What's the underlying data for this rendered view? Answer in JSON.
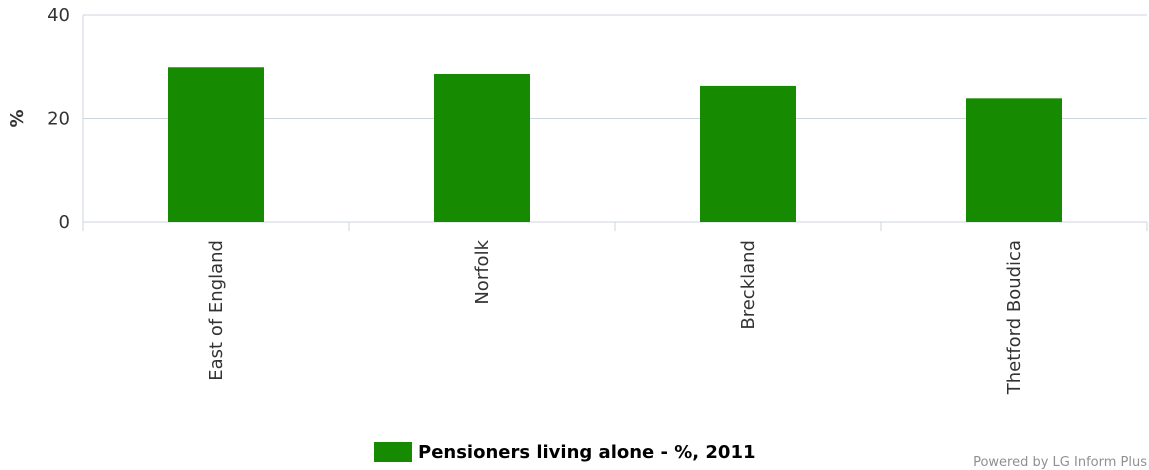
{
  "chart_data": {
    "type": "bar",
    "categories": [
      "East of England",
      "Norfolk",
      "Breckland",
      "Thetford Boudica"
    ],
    "series": [
      {
        "name": "Pensioners living alone - %, 2011",
        "values": [
          29.9,
          28.6,
          26.3,
          23.9
        ],
        "color": "#168a00"
      }
    ],
    "ylabel": "%",
    "xlabel": "",
    "ylim": [
      0,
      40
    ],
    "yticks": [
      0,
      20,
      40
    ],
    "grid": true,
    "legend_position": "bottom-center"
  },
  "legend": {
    "label": "Pensioners living alone - %, 2011"
  },
  "credit": {
    "text": "Powered by LG Inform Plus"
  },
  "colors": {
    "bar": "#168a00",
    "grid": "#ccd6dd",
    "axis": "#ccd6dd",
    "text": "#333333"
  }
}
